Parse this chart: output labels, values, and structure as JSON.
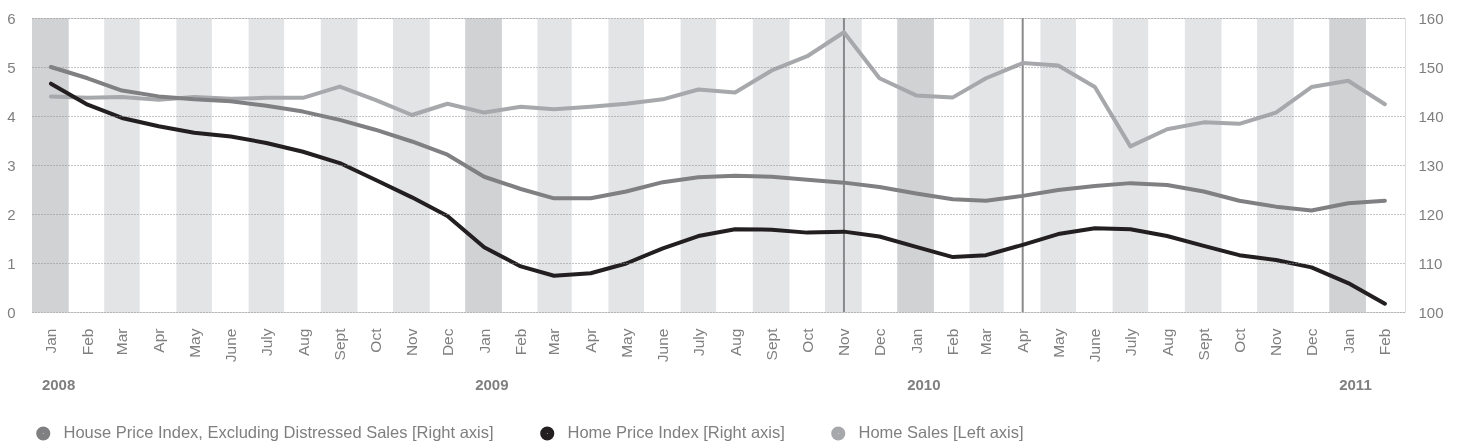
{
  "chart_data": {
    "type": "line",
    "x": [
      "2008-01",
      "2008-02",
      "2008-03",
      "2008-04",
      "2008-05",
      "2008-06",
      "2008-07",
      "2008-08",
      "2008-09",
      "2008-10",
      "2008-11",
      "2008-12",
      "2009-01",
      "2009-02",
      "2009-03",
      "2009-04",
      "2009-05",
      "2009-06",
      "2009-07",
      "2009-08",
      "2009-09",
      "2009-10",
      "2009-11",
      "2009-12",
      "2010-01",
      "2010-02",
      "2010-03",
      "2010-04",
      "2010-05",
      "2010-06",
      "2010-07",
      "2010-08",
      "2010-09",
      "2010-10",
      "2010-11",
      "2010-12",
      "2011-01",
      "2011-02"
    ],
    "xlim": [
      "2007-12-16",
      "2011-02-18"
    ],
    "xticks": [
      {
        "value": "2008-01",
        "label": "Jan"
      },
      {
        "value": "2008-02",
        "label": "Feb"
      },
      {
        "value": "2008-03",
        "label": "Mar"
      },
      {
        "value": "2008-04",
        "label": "Apr"
      },
      {
        "value": "2008-05",
        "label": "May"
      },
      {
        "value": "2008-06",
        "label": "June"
      },
      {
        "value": "2008-07",
        "label": "July"
      },
      {
        "value": "2008-08",
        "label": "Aug"
      },
      {
        "value": "2008-09",
        "label": "Sept"
      },
      {
        "value": "2008-10",
        "label": "Oct"
      },
      {
        "value": "2008-11",
        "label": "Nov"
      },
      {
        "value": "2008-12",
        "label": "Dec"
      },
      {
        "value": "2009-01",
        "label": "Jan"
      },
      {
        "value": "2009-02",
        "label": "Feb"
      },
      {
        "value": "2009-03",
        "label": "Mar"
      },
      {
        "value": "2009-04",
        "label": "Apr"
      },
      {
        "value": "2009-05",
        "label": "May"
      },
      {
        "value": "2009-06",
        "label": "June"
      },
      {
        "value": "2009-07",
        "label": "July"
      },
      {
        "value": "2009-08",
        "label": "Aug"
      },
      {
        "value": "2009-09",
        "label": "Sept"
      },
      {
        "value": "2009-10",
        "label": "Oct"
      },
      {
        "value": "2009-11",
        "label": "Nov"
      },
      {
        "value": "2009-12",
        "label": "Dec"
      },
      {
        "value": "2010-01",
        "label": "Jan"
      },
      {
        "value": "2010-02",
        "label": "Feb"
      },
      {
        "value": "2010-03",
        "label": "Mar"
      },
      {
        "value": "2010-04",
        "label": "Apr"
      },
      {
        "value": "2010-05",
        "label": "May"
      },
      {
        "value": "2010-06",
        "label": "June"
      },
      {
        "value": "2010-07",
        "label": "July"
      },
      {
        "value": "2010-08",
        "label": "Aug"
      },
      {
        "value": "2010-09",
        "label": "Sept"
      },
      {
        "value": "2010-10",
        "label": "Oct"
      },
      {
        "value": "2010-11",
        "label": "Nov"
      },
      {
        "value": "2010-12",
        "label": "Dec"
      },
      {
        "value": "2011-01",
        "label": "Jan"
      },
      {
        "value": "2011-02",
        "label": "Feb"
      }
    ],
    "ylim": [
      0,
      6
    ],
    "yticks": [
      0,
      1,
      2,
      3,
      4,
      5,
      6
    ],
    "y2lim": [
      100,
      160
    ],
    "y2ticks": [
      100,
      110,
      120,
      130,
      140,
      150,
      160
    ],
    "series": [
      {
        "name": "House Price Index, Excluding Distressed Sales [Right axis]",
        "color": "#808083",
        "axis": "y2",
        "values": [
          150.0,
          147.7,
          145.2,
          144.0,
          143.4,
          143.0,
          142.1,
          140.9,
          139.2,
          137.2,
          134.8,
          132.1,
          127.6,
          125.1,
          123.2,
          123.2,
          124.6,
          126.5,
          127.5,
          127.8,
          127.6,
          127.0,
          126.4,
          125.5,
          124.2,
          123.0,
          122.7,
          123.7,
          124.9,
          125.7,
          126.3,
          125.9,
          124.6,
          122.7,
          121.5,
          120.7,
          122.2,
          122.7
        ]
      },
      {
        "name": "Home Price Index [Right axis]",
        "color": "#231f20",
        "axis": "y2",
        "values": [
          146.6,
          142.3,
          139.6,
          137.9,
          136.6,
          135.8,
          134.5,
          132.7,
          130.4,
          127.0,
          123.4,
          119.6,
          113.2,
          109.3,
          107.4,
          107.9,
          109.9,
          113.0,
          115.5,
          116.9,
          116.8,
          116.2,
          116.4,
          115.4,
          113.3,
          111.2,
          111.6,
          113.7,
          115.9,
          117.1,
          116.9,
          115.5,
          113.5,
          111.6,
          110.6,
          109.1,
          105.9,
          101.7
        ]
      },
      {
        "name": "Home Sales [Left axis]",
        "color": "#a7a8ab",
        "axis": "y",
        "values": [
          4.4,
          4.37,
          4.39,
          4.33,
          4.39,
          4.35,
          4.37,
          4.37,
          4.6,
          4.33,
          4.02,
          4.25,
          4.07,
          4.19,
          4.14,
          4.19,
          4.25,
          4.34,
          4.54,
          4.48,
          4.93,
          5.22,
          5.71,
          4.77,
          4.42,
          4.38,
          4.77,
          5.08,
          5.03,
          4.59,
          3.38,
          3.73,
          3.87,
          3.84,
          4.07,
          4.59,
          4.72,
          4.24
        ]
      }
    ],
    "bands": [
      {
        "axis": "x",
        "from": "2007-12-16",
        "to": "2008-01-16",
        "color": "#d1d2d4"
      },
      {
        "axis": "x",
        "from": "2008-02-15",
        "to": "2008-03-16",
        "color": "#e3e4e6"
      },
      {
        "axis": "x",
        "from": "2008-04-16",
        "to": "2008-05-16",
        "color": "#e3e4e6"
      },
      {
        "axis": "x",
        "from": "2008-06-16",
        "to": "2008-07-16",
        "color": "#e3e4e6"
      },
      {
        "axis": "x",
        "from": "2008-08-16",
        "to": "2008-09-16",
        "color": "#e3e4e6"
      },
      {
        "axis": "x",
        "from": "2008-10-16",
        "to": "2008-11-16",
        "color": "#e3e4e6"
      },
      {
        "axis": "x",
        "from": "2008-12-16",
        "to": "2009-01-16",
        "color": "#d1d2d4"
      },
      {
        "axis": "x",
        "from": "2009-02-15",
        "to": "2009-03-16",
        "color": "#e3e4e6"
      },
      {
        "axis": "x",
        "from": "2009-04-16",
        "to": "2009-05-16",
        "color": "#e3e4e6"
      },
      {
        "axis": "x",
        "from": "2009-06-16",
        "to": "2009-07-16",
        "color": "#e3e4e6"
      },
      {
        "axis": "x",
        "from": "2009-08-16",
        "to": "2009-09-16",
        "color": "#e3e4e6"
      },
      {
        "axis": "x",
        "from": "2009-10-16",
        "to": "2009-11-16",
        "color": "#e3e4e6"
      },
      {
        "axis": "x",
        "from": "2009-12-16",
        "to": "2010-01-16",
        "color": "#d1d2d4"
      },
      {
        "axis": "x",
        "from": "2010-02-15",
        "to": "2010-03-16",
        "color": "#e3e4e6"
      },
      {
        "axis": "x",
        "from": "2010-04-16",
        "to": "2010-05-16",
        "color": "#e3e4e6"
      },
      {
        "axis": "x",
        "from": "2010-06-16",
        "to": "2010-07-16",
        "color": "#e3e4e6"
      },
      {
        "axis": "x",
        "from": "2010-08-16",
        "to": "2010-09-16",
        "color": "#e3e4e6"
      },
      {
        "axis": "x",
        "from": "2010-10-16",
        "to": "2010-11-16",
        "color": "#e3e4e6"
      },
      {
        "axis": "x",
        "from": "2010-12-16",
        "to": "2011-01-16",
        "color": "#d1d2d4"
      }
    ],
    "ref_lines": [
      {
        "axis": "x",
        "value": "2009-11",
        "color": "#8a8a8c"
      },
      {
        "axis": "x",
        "value": "2010-04",
        "color": "#8a8a8c"
      }
    ],
    "annotations": [
      "2008",
      "2009",
      "2010",
      "2011"
    ],
    "grid": "y",
    "legend": "bottom",
    "line_style": "solid"
  }
}
